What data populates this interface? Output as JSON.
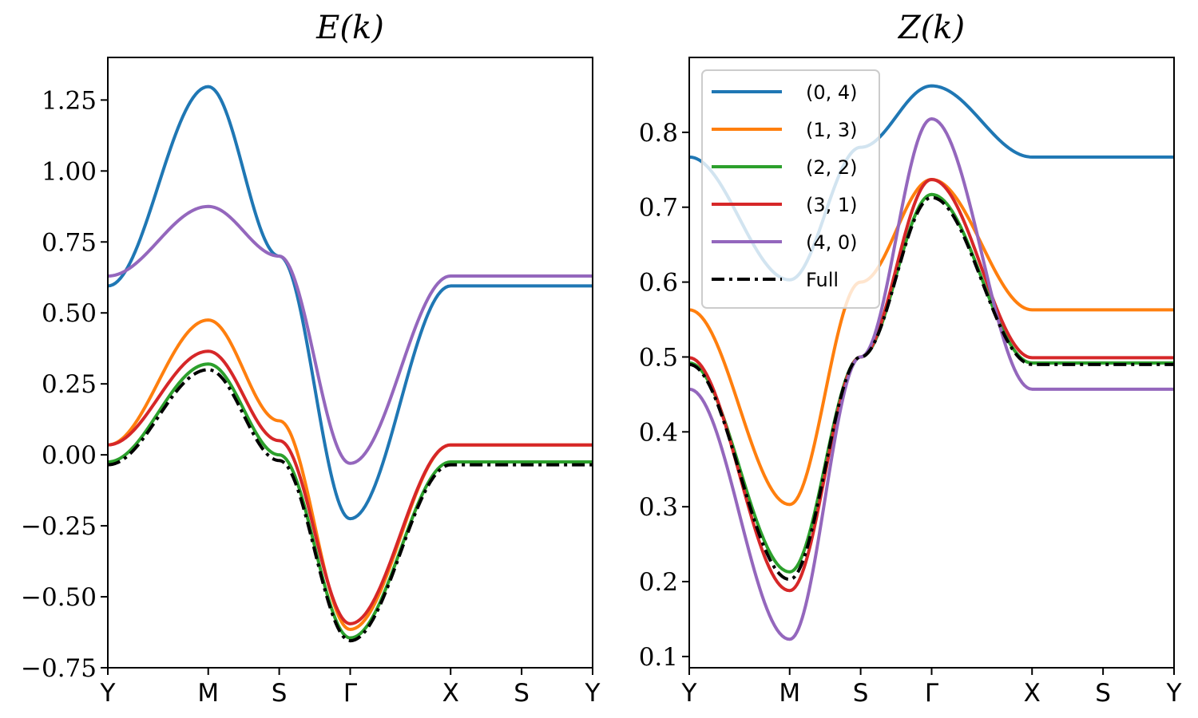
{
  "chart_data": [
    {
      "type": "line",
      "title": "E(k)",
      "xlabel": "",
      "ylabel": "",
      "path_points": [
        "Y",
        "M",
        "S",
        "Γ",
        "X",
        "S",
        "Y"
      ],
      "path_positions": [
        0,
        1,
        1.707,
        2.414,
        3.414,
        4.121,
        4.828
      ],
      "ylim": [
        -0.75,
        1.4
      ],
      "yticks": [
        -0.75,
        -0.5,
        -0.25,
        0.0,
        0.25,
        0.5,
        0.75,
        1.0,
        1.25
      ],
      "ytick_labels": [
        "−0.75",
        "−0.50",
        "−0.25",
        "0.00",
        "0.25",
        "0.50",
        "0.75",
        "1.00",
        "1.25"
      ],
      "grid": false,
      "series": [
        {
          "name": "(0, 4)",
          "color": "#1f77b4",
          "values": [
            0.595,
            1.297,
            0.7,
            -0.225,
            0.595,
            0.595,
            0.595
          ]
        },
        {
          "name": "(1, 3)",
          "color": "#ff7f0e",
          "values": [
            0.035,
            0.475,
            0.12,
            -0.615,
            0.035,
            0.035,
            0.035
          ]
        },
        {
          "name": "(2, 2)",
          "color": "#2ca02c",
          "values": [
            -0.025,
            0.32,
            0.0,
            -0.645,
            -0.025,
            -0.025,
            -0.025
          ]
        },
        {
          "name": "(3, 1)",
          "color": "#d62728",
          "values": [
            0.035,
            0.365,
            0.05,
            -0.595,
            0.035,
            0.035,
            0.035
          ]
        },
        {
          "name": "(4, 0)",
          "color": "#9467bd",
          "values": [
            0.63,
            0.875,
            0.7,
            -0.03,
            0.63,
            0.63,
            0.63
          ]
        },
        {
          "name": "Full",
          "color": "#000000",
          "dashed": true,
          "values": [
            -0.035,
            0.3,
            -0.02,
            -0.655,
            -0.035,
            -0.035,
            -0.035
          ]
        }
      ]
    },
    {
      "type": "line",
      "title": "Z(k)",
      "xlabel": "",
      "ylabel": "",
      "path_points": [
        "Y",
        "M",
        "S",
        "Γ",
        "X",
        "S",
        "Y"
      ],
      "path_positions": [
        0,
        1,
        1.707,
        2.414,
        3.414,
        4.121,
        4.828
      ],
      "ylim": [
        0.085,
        0.9
      ],
      "yticks": [
        0.1,
        0.2,
        0.3,
        0.4,
        0.5,
        0.6,
        0.7,
        0.8
      ],
      "ytick_labels": [
        "0.1",
        "0.2",
        "0.3",
        "0.4",
        "0.5",
        "0.6",
        "0.7",
        "0.8"
      ],
      "grid": false,
      "legend_position": "top-left",
      "series": [
        {
          "name": "(0, 4)",
          "color": "#1f77b4",
          "values": [
            0.767,
            0.603,
            0.78,
            0.862,
            0.767,
            0.767,
            0.767
          ]
        },
        {
          "name": "(1, 3)",
          "color": "#ff7f0e",
          "values": [
            0.563,
            0.303,
            0.6,
            0.737,
            0.563,
            0.563,
            0.563
          ]
        },
        {
          "name": "(2, 2)",
          "color": "#2ca02c",
          "values": [
            0.492,
            0.213,
            0.5,
            0.717,
            0.492,
            0.492,
            0.492
          ]
        },
        {
          "name": "(3, 1)",
          "color": "#d62728",
          "values": [
            0.499,
            0.188,
            0.5,
            0.737,
            0.499,
            0.499,
            0.499
          ]
        },
        {
          "name": "(4, 0)",
          "color": "#9467bd",
          "values": [
            0.457,
            0.123,
            0.5,
            0.818,
            0.457,
            0.457,
            0.457
          ]
        },
        {
          "name": "Full",
          "color": "#000000",
          "dashed": true,
          "values": [
            0.49,
            0.203,
            0.5,
            0.713,
            0.49,
            0.49,
            0.49
          ]
        }
      ]
    }
  ]
}
